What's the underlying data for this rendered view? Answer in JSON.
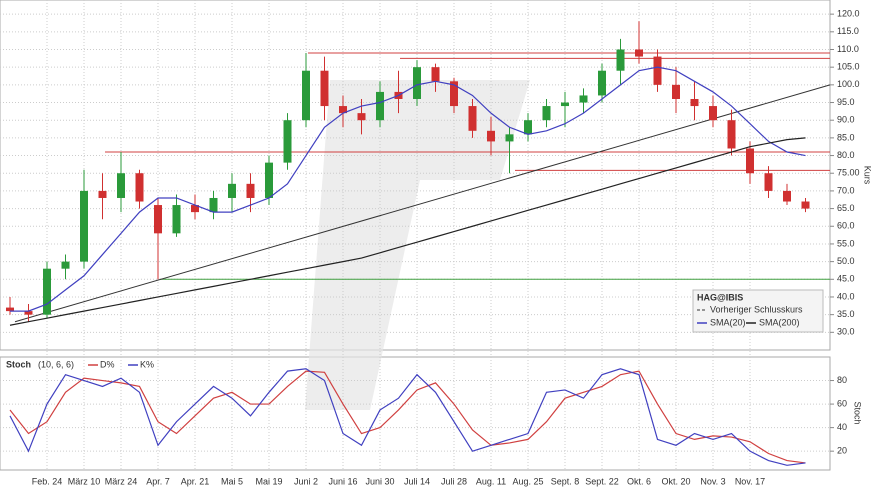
{
  "chart_data": [
    {
      "type": "candlestick",
      "axis_title": "Kurs",
      "open": [
        37,
        36,
        35,
        48,
        50,
        70,
        68,
        75,
        66,
        58,
        66,
        64,
        68,
        72,
        68,
        78,
        90,
        104,
        94,
        92,
        90,
        98,
        96,
        105,
        101,
        94,
        87,
        84,
        86,
        90,
        94,
        95,
        97,
        104,
        110,
        108,
        100,
        96,
        94,
        90,
        82,
        75,
        70,
        67
      ],
      "high": [
        40,
        38,
        50,
        52,
        76,
        75,
        81,
        76,
        68,
        69,
        69,
        70,
        75,
        75,
        80,
        92,
        109,
        108,
        97,
        96,
        101,
        104,
        107,
        106,
        102,
        96,
        91,
        88,
        92,
        96,
        98,
        99,
        106,
        113,
        118,
        110,
        105,
        101,
        97,
        93,
        84,
        77,
        72,
        68
      ],
      "low": [
        35,
        33,
        34,
        45,
        48,
        62,
        64,
        65,
        45,
        57,
        62,
        62,
        64,
        64,
        66,
        76,
        88,
        90,
        88,
        86,
        88,
        92,
        94,
        98,
        92,
        85,
        80,
        75,
        84,
        88,
        88,
        92,
        95,
        100,
        106,
        98,
        92,
        90,
        88,
        80,
        72,
        68,
        66,
        64
      ],
      "close": [
        36,
        35,
        48,
        50,
        70,
        68,
        75,
        67,
        58,
        66,
        64,
        68,
        72,
        68,
        78,
        90,
        104,
        94,
        92,
        90,
        98,
        96,
        105,
        101,
        94,
        87,
        84,
        86,
        90,
        94,
        95,
        97,
        104,
        110,
        108,
        100,
        96,
        94,
        90,
        82,
        75,
        70,
        67,
        65
      ],
      "up_color": "#2a9a3a",
      "down_color": "#d03030",
      "series": [
        {
          "name": "SMA(20)",
          "color": "#4040c0",
          "values": [
            36,
            36,
            38,
            42,
            46,
            52,
            58,
            64,
            68,
            68,
            66,
            64,
            64,
            66,
            68,
            72,
            80,
            88,
            92,
            94,
            95,
            97,
            100,
            101,
            100,
            97,
            92,
            88,
            86,
            87,
            89,
            92,
            96,
            100,
            104,
            105,
            104,
            101,
            98,
            94,
            89,
            84,
            81,
            80
          ]
        },
        {
          "name": "SMA(200)",
          "color": "#222222",
          "values": [
            32,
            33,
            34,
            35,
            36,
            37,
            38,
            39,
            40,
            41,
            42,
            43,
            44,
            45,
            46,
            47,
            48,
            49,
            50,
            51,
            52.5,
            54,
            55.5,
            57,
            58.5,
            60,
            61.5,
            63,
            64.5,
            66,
            67.5,
            69,
            70.5,
            72,
            73.5,
            75,
            76.5,
            78,
            79.5,
            81,
            82.5,
            83.5,
            84.5,
            85
          ]
        }
      ],
      "trendline": {
        "start": 33,
        "end": 100,
        "color": "#333333"
      },
      "levels": [
        {
          "value": 109,
          "color": "#d04040"
        },
        {
          "value": 107.5,
          "color": "#d04040"
        },
        {
          "value": 81,
          "color": "#d04040"
        },
        {
          "value": 75.8,
          "color": "#d04040"
        },
        {
          "value": 45,
          "color": "#40a040"
        }
      ],
      "legend": {
        "title": "HAG@IBIS",
        "entries": [
          "Vorheriger Schlusskurs",
          "SMA(20)",
          "SMA(200)"
        ]
      },
      "ylim": [
        25,
        124
      ],
      "yticks": [
        {
          "value": 30,
          "label": "30.0"
        },
        {
          "value": 35,
          "label": "35.0"
        },
        {
          "value": 40,
          "label": "40.0"
        },
        {
          "value": 45,
          "label": "45.0"
        },
        {
          "value": 50,
          "label": "50.0"
        },
        {
          "value": 55,
          "label": "55.0"
        },
        {
          "value": 60,
          "label": "60.0"
        },
        {
          "value": 65,
          "label": "65.0"
        },
        {
          "value": 70,
          "label": "70.0"
        },
        {
          "value": 75,
          "label": "75.00"
        },
        {
          "value": 80,
          "label": "80.0"
        },
        {
          "value": 85,
          "label": "85.0"
        },
        {
          "value": 90,
          "label": "90.0"
        },
        {
          "value": 95,
          "label": "95.0"
        },
        {
          "value": 100,
          "label": "100.0"
        },
        {
          "value": 105,
          "label": "105.0"
        },
        {
          "value": 110,
          "label": "110.0"
        },
        {
          "value": 115,
          "label": "115.0"
        },
        {
          "value": 120,
          "label": "120.0"
        }
      ],
      "grid": true
    },
    {
      "type": "line",
      "title": "Stoch",
      "params": "(10, 6, 6)",
      "axis_title": "Stoch",
      "categories": [
        null,
        null,
        "Feb. 24",
        null,
        "März 10",
        null,
        "März 24",
        null,
        "Apr. 7",
        null,
        "Apr. 21",
        null,
        "Mai 5",
        null,
        "Mai 19",
        null,
        "Juni 2",
        null,
        "Juni 16",
        null,
        "Juni 30",
        null,
        "Juli 14",
        null,
        "Juli 28",
        null,
        "Aug. 11",
        null,
        "Aug. 25",
        null,
        "Sept. 8",
        null,
        "Sept. 22",
        null,
        "Okt. 6",
        null,
        "Okt. 20",
        null,
        "Nov. 3",
        null,
        "Nov. 17",
        null,
        null,
        null
      ],
      "series": [
        {
          "name": "D%",
          "color": "#d04040",
          "values": [
            55,
            35,
            45,
            70,
            82,
            80,
            78,
            75,
            45,
            35,
            50,
            65,
            70,
            60,
            60,
            75,
            88,
            87,
            60,
            35,
            40,
            55,
            72,
            78,
            60,
            38,
            25,
            27,
            30,
            45,
            65,
            70,
            75,
            85,
            88,
            60,
            35,
            30,
            33,
            32,
            28,
            18,
            12,
            10
          ]
        },
        {
          "name": "K%",
          "color": "#4040c0",
          "values": [
            50,
            20,
            60,
            85,
            80,
            75,
            82,
            70,
            25,
            45,
            60,
            75,
            65,
            50,
            70,
            88,
            90,
            80,
            35,
            25,
            55,
            65,
            85,
            70,
            45,
            20,
            25,
            30,
            35,
            70,
            72,
            65,
            85,
            90,
            85,
            30,
            25,
            35,
            30,
            35,
            20,
            12,
            8,
            10
          ]
        }
      ],
      "ylim": [
        4,
        100
      ],
      "yticks": [
        20,
        40,
        60,
        80
      ],
      "grid": true
    }
  ]
}
